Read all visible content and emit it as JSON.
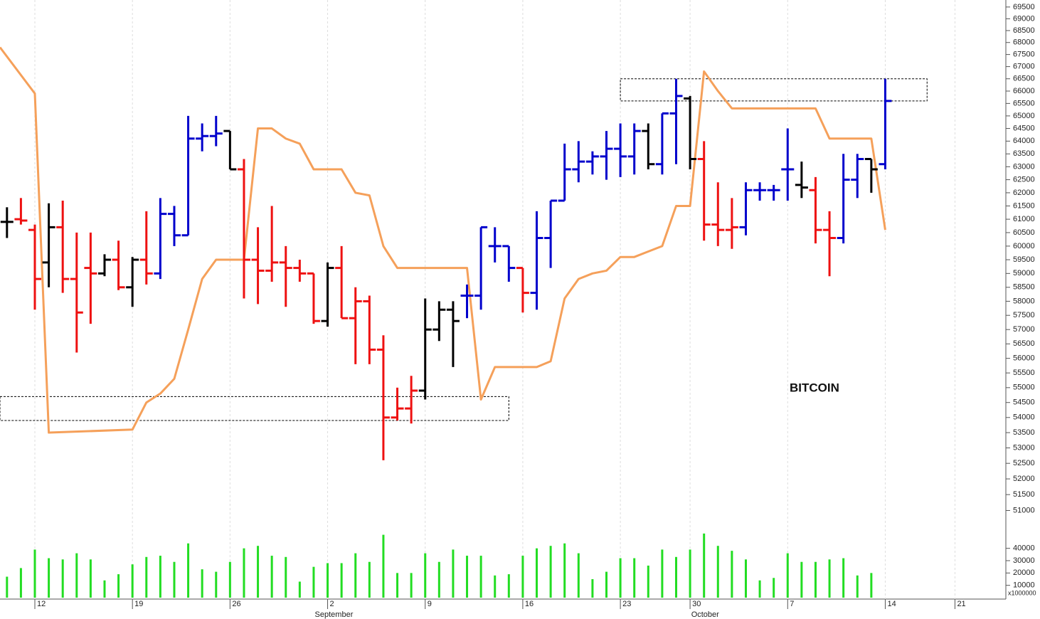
{
  "chart_data": {
    "type": "ohlc",
    "annotation": "BITCOIN",
    "log_scale": true,
    "xlim": [
      -0.5,
      71.6
    ],
    "xticks": [
      {
        "value": 2,
        "label": "12"
      },
      {
        "value": 9,
        "label": "19"
      },
      {
        "value": 16,
        "label": "26"
      },
      {
        "value": 23,
        "label": "2"
      },
      {
        "value": 30,
        "label": "9"
      },
      {
        "value": 37,
        "label": "16"
      },
      {
        "value": 44,
        "label": "23"
      },
      {
        "value": 49,
        "label": "30"
      },
      {
        "value": 56,
        "label": "7"
      },
      {
        "value": 63,
        "label": "14"
      },
      {
        "value": 68,
        "label": "21"
      }
    ],
    "month_labels": [
      {
        "value": 23,
        "label": "September"
      },
      {
        "value": 50,
        "label": "October"
      }
    ],
    "ylim": [
      50500,
      69800
    ],
    "yticks": [
      51000,
      51500,
      52000,
      52500,
      53000,
      53500,
      54000,
      54500,
      55000,
      55500,
      56000,
      56500,
      57000,
      57500,
      58000,
      58500,
      59000,
      59500,
      60000,
      60500,
      61000,
      61500,
      62000,
      62500,
      63000,
      63500,
      64000,
      64500,
      65000,
      65500,
      66000,
      66500,
      67000,
      67500,
      68000,
      68500,
      69000,
      69500
    ],
    "x": [
      0,
      1,
      2,
      3,
      4,
      5,
      6,
      7,
      8,
      9,
      10,
      11,
      12,
      13,
      14,
      15,
      16,
      17,
      18,
      19,
      20,
      21,
      22,
      23,
      24,
      25,
      26,
      27,
      28,
      29,
      30,
      31,
      32,
      33,
      34,
      35,
      36,
      37,
      38,
      39,
      40,
      41,
      42,
      43,
      44,
      45,
      46,
      47,
      48,
      49,
      50,
      51,
      52,
      53,
      54,
      55,
      56,
      57,
      58,
      59,
      60,
      61,
      62,
      63
    ],
    "open": [
      60900,
      61000,
      60600,
      59400,
      60700,
      58800,
      59200,
      59000,
      59500,
      58500,
      59500,
      59000,
      61200,
      60400,
      64100,
      64200,
      64400,
      62900,
      59500,
      59100,
      59400,
      59200,
      59000,
      57300,
      59200,
      57400,
      58000,
      56300,
      54000,
      54300,
      54900,
      57000,
      57700,
      58200,
      58200,
      60000,
      60000,
      59200,
      58300,
      60300,
      61700,
      62900,
      63200,
      63400,
      63700,
      63400,
      64400,
      63100,
      65100,
      65700,
      63300,
      60800,
      60600,
      60700,
      62100,
      62100,
      62900,
      62300,
      62100,
      60600,
      60300,
      62500,
      63300,
      63100
    ],
    "high": [
      61450,
      61800,
      60800,
      61600,
      61700,
      60500,
      60500,
      59700,
      60200,
      59600,
      61300,
      61800,
      61500,
      65000,
      64700,
      65000,
      64400,
      63300,
      60700,
      61500,
      60000,
      59500,
      59000,
      59400,
      60000,
      58500,
      58200,
      56800,
      55000,
      55400,
      58100,
      58000,
      58000,
      58600,
      60700,
      60700,
      60000,
      59200,
      61300,
      61700,
      63900,
      64000,
      63600,
      64400,
      64700,
      64700,
      64700,
      65100,
      66500,
      65800,
      64000,
      62400,
      61800,
      62400,
      62400,
      62300,
      64500,
      63200,
      62600,
      61300,
      63500,
      63500,
      63300,
      66500
    ],
    "low": [
      60300,
      60800,
      57700,
      58500,
      58300,
      56200,
      57200,
      58900,
      58400,
      57800,
      58600,
      58800,
      60000,
      60400,
      63600,
      63800,
      62900,
      58100,
      57900,
      58700,
      57800,
      58700,
      57200,
      57100,
      57400,
      55800,
      55800,
      52600,
      53900,
      53800,
      54600,
      56600,
      55700,
      57400,
      57700,
      59400,
      58700,
      57600,
      57700,
      59200,
      61700,
      62400,
      62700,
      62500,
      62600,
      62700,
      62900,
      62700,
      63100,
      62900,
      60200,
      60000,
      59900,
      60400,
      61700,
      61700,
      61700,
      61800,
      60100,
      58900,
      60100,
      61800,
      62000,
      62900
    ],
    "close": [
      60900,
      60950,
      58800,
      60700,
      58800,
      57600,
      59000,
      59500,
      58500,
      59500,
      59000,
      61200,
      60400,
      64100,
      64200,
      64300,
      62900,
      59500,
      59100,
      59400,
      59200,
      59000,
      57300,
      59200,
      57400,
      58000,
      56300,
      54000,
      54300,
      54900,
      57000,
      57700,
      57300,
      58200,
      60700,
      60000,
      59200,
      58300,
      60300,
      61700,
      62900,
      63200,
      63400,
      63700,
      63400,
      64400,
      63100,
      65100,
      65800,
      63300,
      60800,
      60600,
      60700,
      62100,
      62100,
      62100,
      62900,
      62200,
      60600,
      60300,
      62500,
      63300,
      62900,
      65600
    ],
    "bar_colors": [
      "#000000",
      "#ee1111",
      "#ee1111",
      "#000000",
      "#ee1111",
      "#ee1111",
      "#ee1111",
      "#000000",
      "#ee1111",
      "#000000",
      "#ee1111",
      "#0000cc",
      "#0000cc",
      "#0000cc",
      "#0000cc",
      "#0000cc",
      "#000000",
      "#ee1111",
      "#ee1111",
      "#ee1111",
      "#ee1111",
      "#ee1111",
      "#ee1111",
      "#000000",
      "#ee1111",
      "#ee1111",
      "#ee1111",
      "#ee1111",
      "#ee1111",
      "#ee1111",
      "#000000",
      "#000000",
      "#000000",
      "#0000cc",
      "#0000cc",
      "#0000cc",
      "#0000cc",
      "#ee1111",
      "#0000cc",
      "#0000cc",
      "#0000cc",
      "#0000cc",
      "#0000cc",
      "#0000cc",
      "#0000cc",
      "#0000cc",
      "#000000",
      "#0000cc",
      "#0000cc",
      "#000000",
      "#ee1111",
      "#ee1111",
      "#ee1111",
      "#0000cc",
      "#0000cc",
      "#0000cc",
      "#0000cc",
      "#000000",
      "#ee1111",
      "#ee1111",
      "#0000cc",
      "#0000cc",
      "#000000",
      "#0000cc"
    ],
    "line": {
      "color": "#f5a05a",
      "x": [
        -0.5,
        2,
        3,
        9,
        10,
        11,
        12,
        13,
        14,
        15,
        17,
        18,
        19,
        20,
        21,
        22,
        24,
        25,
        26,
        27,
        28,
        33,
        34,
        35,
        38,
        39,
        40,
        41,
        42,
        43,
        44,
        45,
        46,
        47,
        48,
        49,
        50,
        51,
        52,
        58,
        59,
        62,
        63
      ],
      "values": [
        67800,
        65900,
        53500,
        53600,
        54500,
        54800,
        55300,
        57000,
        58800,
        59500,
        59500,
        64500,
        64500,
        64100,
        63900,
        62900,
        62900,
        62000,
        61900,
        60000,
        59200,
        59200,
        54600,
        55700,
        55700,
        55900,
        58100,
        58800,
        59000,
        59100,
        59600,
        59600,
        59800,
        60000,
        61500,
        61500,
        66800,
        66000,
        65300,
        65300,
        64100,
        64100,
        60600
      ]
    },
    "zones": [
      {
        "x": [
          44,
          66
        ],
        "y": [
          65600,
          66500
        ]
      },
      {
        "x": [
          -0.5,
          36
        ],
        "y": [
          53900,
          54700
        ]
      }
    ],
    "volume": {
      "color": "#22dd22",
      "values": [
        17000,
        24000,
        39000,
        32000,
        31000,
        36000,
        31000,
        14000,
        19000,
        27000,
        33000,
        34000,
        29000,
        44000,
        23000,
        21000,
        29000,
        40000,
        42000,
        34000,
        33000,
        13000,
        25000,
        28000,
        28000,
        36000,
        29000,
        51000,
        20000,
        20000,
        36000,
        29000,
        39000,
        34000,
        34000,
        18000,
        19000,
        34000,
        40000,
        42000,
        44000,
        36000,
        15000,
        21000,
        32000,
        32000,
        26000,
        39000,
        33000,
        39000,
        52000,
        42000,
        38000,
        31000,
        14000,
        16000,
        36000,
        29000,
        29000,
        31000,
        32000,
        18000,
        20000,
        null
      ],
      "ylim": [
        0,
        60000
      ],
      "yticks": [
        10000,
        20000,
        30000,
        40000
      ],
      "unit_label": "x1000000"
    }
  }
}
